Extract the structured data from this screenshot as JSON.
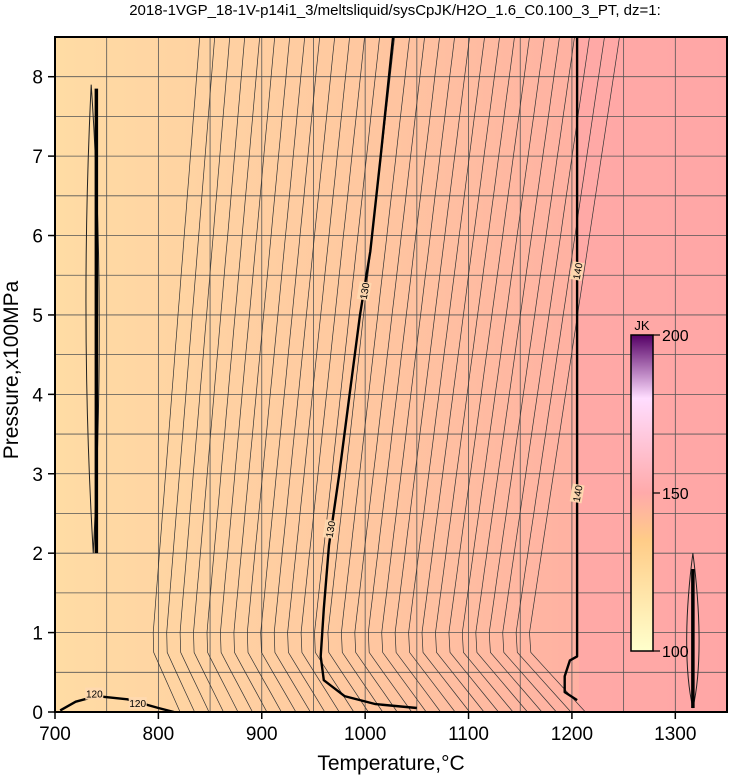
{
  "chart_data": {
    "type": "heatmap",
    "title": "2018-1VGP_18-1V-p14i1_3/meltsliquid/sysCpJK/H2O_1.6_C0.100_3_PT, dz=1:",
    "xlabel": "Temperature,°C",
    "ylabel": "Pressure,x100MPa",
    "xlim": [
      700,
      1350
    ],
    "ylim": [
      0,
      8.5
    ],
    "x_ticks": [
      700,
      800,
      900,
      1000,
      1100,
      1200,
      1300
    ],
    "y_ticks": [
      0,
      1,
      2,
      3,
      4,
      5,
      6,
      7,
      8
    ],
    "grid": true,
    "colorbar": {
      "label": "JK",
      "range": [
        100,
        200
      ],
      "ticks": [
        100,
        150,
        200
      ],
      "colors": [
        "#ffffcc",
        "#ffcc88",
        "#ffaaaa",
        "#ffddff",
        "#440055"
      ]
    },
    "field_colors": {
      "low": "#ffdba4",
      "high": "#ffa5a5"
    },
    "contour_labels": [
      {
        "text": "120",
        "x": 738,
        "y": 0.22
      },
      {
        "text": "120",
        "x": 780,
        "y": 0.1
      },
      {
        "text": "130",
        "x": 1000,
        "y": 5.3
      },
      {
        "text": "130",
        "x": 967,
        "y": 2.3
      },
      {
        "text": "140",
        "x": 1206,
        "y": 5.55
      },
      {
        "text": "140",
        "x": 1206,
        "y": 2.75
      }
    ],
    "bold_contours": [
      {
        "level": 120,
        "points": [
          [
            705,
            0.02
          ],
          [
            720,
            0.13
          ],
          [
            740,
            0.2
          ],
          [
            770,
            0.16
          ],
          [
            800,
            0.05
          ],
          [
            815,
            0
          ]
        ]
      },
      {
        "level": 130,
        "points": [
          [
            1027,
            8.5
          ],
          [
            1015,
            7.0
          ],
          [
            1005,
            5.8
          ],
          [
            995,
            5.0
          ],
          [
            985,
            4.0
          ],
          [
            975,
            3.0
          ],
          [
            965,
            2.1
          ],
          [
            960,
            1.3
          ],
          [
            957,
            0.7
          ],
          [
            960,
            0.4
          ],
          [
            980,
            0.2
          ],
          [
            1010,
            0.1
          ],
          [
            1050,
            0.05
          ]
        ]
      },
      {
        "level": 140,
        "points": [
          [
            1205,
            8.5
          ],
          [
            1205,
            6.0
          ],
          [
            1205,
            3.0
          ],
          [
            1205,
            0.7
          ],
          [
            1198,
            0.65
          ],
          [
            1193,
            0.45
          ],
          [
            1193,
            0.25
          ],
          [
            1205,
            0.15
          ]
        ]
      }
    ]
  }
}
